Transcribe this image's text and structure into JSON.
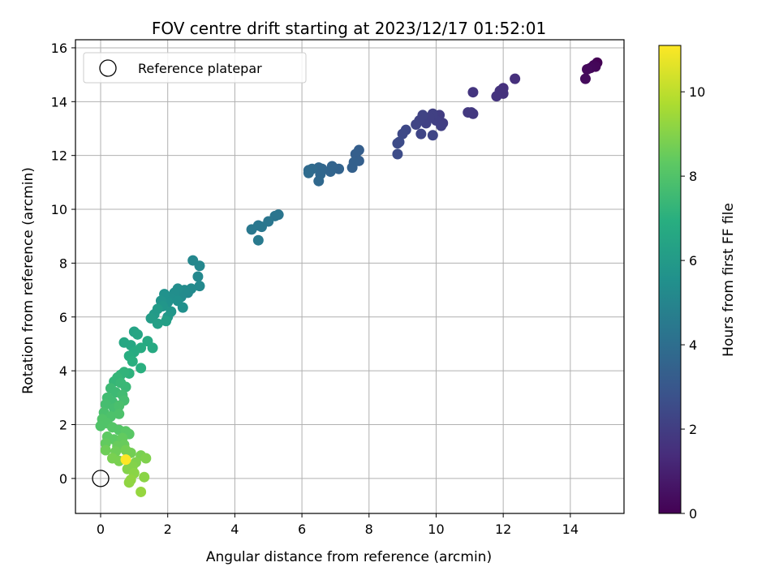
{
  "chart_data": {
    "type": "scatter",
    "title": "FOV centre drift starting at 2023/12/17 01:52:01",
    "xlabel": "Angular distance from reference (arcmin)",
    "ylabel": "Rotation from reference (arcmin)",
    "xlim": [
      -0.75,
      15.6
    ],
    "ylim": [
      -1.3,
      16.3
    ],
    "xticks": [
      0,
      2,
      4,
      6,
      8,
      10,
      12,
      14
    ],
    "yticks": [
      0,
      2,
      4,
      6,
      8,
      10,
      12,
      14,
      16
    ],
    "grid": true,
    "colormap": "viridis",
    "colorbar": {
      "label": "Hours from first FF file",
      "range": [
        0,
        11.1
      ],
      "ticks": [
        0,
        2,
        4,
        6,
        8,
        10
      ]
    },
    "legend": {
      "placement": "top-left",
      "entries": [
        "Reference platepar"
      ]
    },
    "reference_point": {
      "x": 0,
      "y": 0
    },
    "points": [
      {
        "x": 14.8,
        "y": 15.45,
        "h": 0.0
      },
      {
        "x": 14.7,
        "y": 15.35,
        "h": 0.1
      },
      {
        "x": 14.6,
        "y": 15.25,
        "h": 0.2
      },
      {
        "x": 14.5,
        "y": 15.2,
        "h": 0.25
      },
      {
        "x": 14.45,
        "y": 14.85,
        "h": 0.3
      },
      {
        "x": 14.75,
        "y": 15.3,
        "h": 0.15
      },
      {
        "x": 12.35,
        "y": 14.85,
        "h": 1.5
      },
      {
        "x": 12.0,
        "y": 14.5,
        "h": 1.55
      },
      {
        "x": 11.9,
        "y": 14.4,
        "h": 1.6
      },
      {
        "x": 12.0,
        "y": 14.3,
        "h": 1.6
      },
      {
        "x": 11.8,
        "y": 14.2,
        "h": 1.65
      },
      {
        "x": 11.1,
        "y": 14.35,
        "h": 1.7
      },
      {
        "x": 11.05,
        "y": 13.6,
        "h": 1.8
      },
      {
        "x": 11.1,
        "y": 13.55,
        "h": 1.8
      },
      {
        "x": 10.95,
        "y": 13.6,
        "h": 1.85
      },
      {
        "x": 10.2,
        "y": 13.2,
        "h": 2.0
      },
      {
        "x": 10.1,
        "y": 13.5,
        "h": 2.0
      },
      {
        "x": 10.0,
        "y": 13.3,
        "h": 2.05
      },
      {
        "x": 9.9,
        "y": 13.55,
        "h": 2.1
      },
      {
        "x": 9.8,
        "y": 13.4,
        "h": 2.1
      },
      {
        "x": 9.7,
        "y": 13.2,
        "h": 2.15
      },
      {
        "x": 9.6,
        "y": 13.5,
        "h": 2.2
      },
      {
        "x": 9.5,
        "y": 13.3,
        "h": 2.2
      },
      {
        "x": 9.4,
        "y": 13.15,
        "h": 2.25
      },
      {
        "x": 9.9,
        "y": 12.75,
        "h": 2.3
      },
      {
        "x": 9.55,
        "y": 12.8,
        "h": 2.3
      },
      {
        "x": 10.15,
        "y": 13.1,
        "h": 2.05
      },
      {
        "x": 9.1,
        "y": 12.95,
        "h": 2.4
      },
      {
        "x": 9.0,
        "y": 12.8,
        "h": 2.45
      },
      {
        "x": 8.9,
        "y": 12.5,
        "h": 2.5
      },
      {
        "x": 8.85,
        "y": 12.45,
        "h": 2.5
      },
      {
        "x": 8.85,
        "y": 12.05,
        "h": 2.55
      },
      {
        "x": 7.7,
        "y": 12.2,
        "h": 3.3
      },
      {
        "x": 7.6,
        "y": 12.05,
        "h": 3.35
      },
      {
        "x": 7.7,
        "y": 11.8,
        "h": 3.35
      },
      {
        "x": 7.55,
        "y": 11.75,
        "h": 3.4
      },
      {
        "x": 7.5,
        "y": 11.55,
        "h": 3.4
      },
      {
        "x": 7.1,
        "y": 11.5,
        "h": 3.5
      },
      {
        "x": 6.9,
        "y": 11.6,
        "h": 3.55
      },
      {
        "x": 6.85,
        "y": 11.4,
        "h": 3.6
      },
      {
        "x": 6.6,
        "y": 11.5,
        "h": 3.65
      },
      {
        "x": 6.5,
        "y": 11.55,
        "h": 3.7
      },
      {
        "x": 6.55,
        "y": 11.3,
        "h": 3.7
      },
      {
        "x": 6.5,
        "y": 11.05,
        "h": 3.75
      },
      {
        "x": 6.3,
        "y": 11.5,
        "h": 3.8
      },
      {
        "x": 6.2,
        "y": 11.45,
        "h": 3.8
      },
      {
        "x": 6.2,
        "y": 11.35,
        "h": 3.85
      },
      {
        "x": 5.3,
        "y": 9.8,
        "h": 4.3
      },
      {
        "x": 5.2,
        "y": 9.75,
        "h": 4.3
      },
      {
        "x": 5.0,
        "y": 9.55,
        "h": 4.35
      },
      {
        "x": 4.8,
        "y": 9.35,
        "h": 4.4
      },
      {
        "x": 4.7,
        "y": 9.4,
        "h": 4.4
      },
      {
        "x": 4.5,
        "y": 9.25,
        "h": 4.45
      },
      {
        "x": 4.7,
        "y": 8.85,
        "h": 4.5
      },
      {
        "x": 2.75,
        "y": 8.1,
        "h": 5.1
      },
      {
        "x": 2.95,
        "y": 7.9,
        "h": 5.1
      },
      {
        "x": 2.9,
        "y": 7.5,
        "h": 5.15
      },
      {
        "x": 2.95,
        "y": 7.15,
        "h": 5.2
      },
      {
        "x": 2.7,
        "y": 7.05,
        "h": 5.25
      },
      {
        "x": 2.5,
        "y": 7.0,
        "h": 5.3
      },
      {
        "x": 2.3,
        "y": 7.05,
        "h": 5.35
      },
      {
        "x": 2.2,
        "y": 6.9,
        "h": 5.4
      },
      {
        "x": 2.1,
        "y": 6.7,
        "h": 5.45
      },
      {
        "x": 2.3,
        "y": 6.6,
        "h": 5.5
      },
      {
        "x": 2.45,
        "y": 6.35,
        "h": 5.5
      },
      {
        "x": 2.0,
        "y": 6.55,
        "h": 5.6
      },
      {
        "x": 1.9,
        "y": 6.85,
        "h": 5.6
      },
      {
        "x": 1.8,
        "y": 6.6,
        "h": 5.7
      },
      {
        "x": 1.85,
        "y": 6.4,
        "h": 5.8
      },
      {
        "x": 2.1,
        "y": 6.2,
        "h": 5.8
      },
      {
        "x": 2.0,
        "y": 6.0,
        "h": 5.9
      },
      {
        "x": 1.7,
        "y": 6.3,
        "h": 6.0
      },
      {
        "x": 1.6,
        "y": 6.1,
        "h": 6.0
      },
      {
        "x": 1.5,
        "y": 5.95,
        "h": 6.1
      },
      {
        "x": 1.7,
        "y": 5.75,
        "h": 6.2
      },
      {
        "x": 1.95,
        "y": 5.85,
        "h": 6.2
      },
      {
        "x": 2.6,
        "y": 6.9,
        "h": 5.2
      },
      {
        "x": 2.4,
        "y": 6.75,
        "h": 5.3
      },
      {
        "x": 1.0,
        "y": 5.45,
        "h": 6.4
      },
      {
        "x": 1.1,
        "y": 5.35,
        "h": 6.5
      },
      {
        "x": 0.7,
        "y": 5.05,
        "h": 6.6
      },
      {
        "x": 0.9,
        "y": 4.95,
        "h": 6.6
      },
      {
        "x": 1.4,
        "y": 5.1,
        "h": 6.7
      },
      {
        "x": 1.55,
        "y": 4.85,
        "h": 6.7
      },
      {
        "x": 1.2,
        "y": 4.85,
        "h": 6.8
      },
      {
        "x": 1.0,
        "y": 4.7,
        "h": 6.8
      },
      {
        "x": 0.85,
        "y": 4.55,
        "h": 6.9
      },
      {
        "x": 0.95,
        "y": 4.35,
        "h": 7.0
      },
      {
        "x": 1.2,
        "y": 4.1,
        "h": 7.0
      },
      {
        "x": 0.85,
        "y": 3.9,
        "h": 7.1
      },
      {
        "x": 0.7,
        "y": 3.95,
        "h": 7.2
      },
      {
        "x": 0.6,
        "y": 3.85,
        "h": 7.2
      },
      {
        "x": 0.5,
        "y": 3.75,
        "h": 7.3
      },
      {
        "x": 0.4,
        "y": 3.6,
        "h": 7.3
      },
      {
        "x": 0.6,
        "y": 3.55,
        "h": 7.4
      },
      {
        "x": 0.75,
        "y": 3.4,
        "h": 7.4
      },
      {
        "x": 0.3,
        "y": 3.35,
        "h": 7.5
      },
      {
        "x": 0.45,
        "y": 3.2,
        "h": 7.5
      },
      {
        "x": 0.65,
        "y": 3.1,
        "h": 7.6
      },
      {
        "x": 0.2,
        "y": 3.0,
        "h": 7.6
      },
      {
        "x": 0.35,
        "y": 2.85,
        "h": 7.6
      },
      {
        "x": 0.7,
        "y": 2.9,
        "h": 7.7
      },
      {
        "x": 0.15,
        "y": 2.75,
        "h": 7.7
      },
      {
        "x": 0.4,
        "y": 2.6,
        "h": 7.7
      },
      {
        "x": 0.55,
        "y": 2.7,
        "h": 7.8
      },
      {
        "x": 0.1,
        "y": 2.45,
        "h": 7.8
      },
      {
        "x": 0.3,
        "y": 2.3,
        "h": 7.9
      },
      {
        "x": 0.55,
        "y": 2.4,
        "h": 7.9
      },
      {
        "x": 0.05,
        "y": 2.2,
        "h": 8.0
      },
      {
        "x": 0.2,
        "y": 2.05,
        "h": 8.0
      },
      {
        "x": 0.0,
        "y": 1.95,
        "h": 8.0
      },
      {
        "x": 0.35,
        "y": 1.9,
        "h": 8.1
      },
      {
        "x": 0.55,
        "y": 1.8,
        "h": 8.1
      },
      {
        "x": 0.75,
        "y": 1.75,
        "h": 8.2
      },
      {
        "x": 0.85,
        "y": 1.65,
        "h": 8.2
      },
      {
        "x": 0.2,
        "y": 1.55,
        "h": 8.3
      },
      {
        "x": 0.4,
        "y": 1.45,
        "h": 8.3
      },
      {
        "x": 0.65,
        "y": 1.5,
        "h": 8.4
      },
      {
        "x": 0.15,
        "y": 1.3,
        "h": 8.4
      },
      {
        "x": 0.5,
        "y": 1.2,
        "h": 8.5
      },
      {
        "x": 0.7,
        "y": 1.25,
        "h": 8.5
      },
      {
        "x": 0.15,
        "y": 1.05,
        "h": 8.6
      },
      {
        "x": 0.45,
        "y": 1.0,
        "h": 8.6
      },
      {
        "x": 0.75,
        "y": 1.05,
        "h": 8.7
      },
      {
        "x": 0.9,
        "y": 0.95,
        "h": 8.7
      },
      {
        "x": 0.35,
        "y": 0.75,
        "h": 8.8
      },
      {
        "x": 0.55,
        "y": 0.65,
        "h": 8.8
      },
      {
        "x": 1.2,
        "y": 0.85,
        "h": 8.8
      },
      {
        "x": 1.35,
        "y": 0.75,
        "h": 8.9
      },
      {
        "x": 1.05,
        "y": 0.6,
        "h": 8.9
      },
      {
        "x": 0.95,
        "y": 0.45,
        "h": 9.0
      },
      {
        "x": 0.8,
        "y": 0.35,
        "h": 9.0
      },
      {
        "x": 1.0,
        "y": 0.2,
        "h": 9.1
      },
      {
        "x": 1.3,
        "y": 0.05,
        "h": 9.1
      },
      {
        "x": 0.9,
        "y": -0.05,
        "h": 9.2
      },
      {
        "x": 0.85,
        "y": -0.15,
        "h": 9.2
      },
      {
        "x": 1.2,
        "y": -0.5,
        "h": 9.3
      },
      {
        "x": 0.75,
        "y": 0.7,
        "h": 11.1
      }
    ]
  }
}
